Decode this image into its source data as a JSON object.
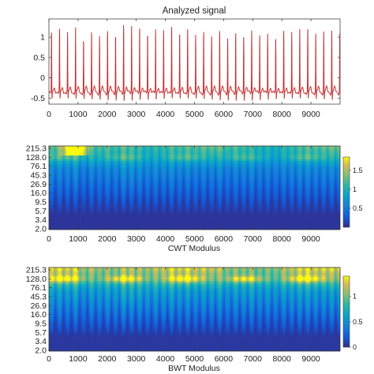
{
  "chart_data": [
    {
      "type": "line",
      "title": "Analyzed signal",
      "xlabel": "",
      "ylabel": "",
      "xlim": [
        0,
        10000
      ],
      "ylim": [
        -0.65,
        1.45
      ],
      "x_ticks": [
        "0",
        "1000",
        "2000",
        "3000",
        "4000",
        "5000",
        "6000",
        "7000",
        "8000",
        "9000"
      ],
      "y_ticks": [
        "-0.5",
        "0",
        "0.5",
        "1"
      ],
      "line_color": "#c83030",
      "grid": false,
      "beats": {
        "count": 36,
        "period": 275,
        "first_peak": 90,
        "peak_values": [
          1.15,
          1.2,
          1.1,
          1.25,
          0.95,
          1.15,
          1.05,
          1.2,
          1.1,
          1.35,
          1.3,
          1.25,
          1.1,
          1.2,
          1.15,
          1.25,
          1.1,
          1.2,
          1.05,
          1.15,
          1.1,
          1.2,
          1.0,
          1.15,
          1.1,
          1.2,
          1.05,
          1.1,
          1.0,
          1.15,
          1.1,
          1.2,
          1.25,
          1.1,
          1.15,
          1.2
        ],
        "baseline": -0.35,
        "trough": -0.55
      }
    },
    {
      "type": "heatmap",
      "title": "",
      "xlabel": "CWT Modulus",
      "ylabel": "",
      "xlim": [
        0,
        10000
      ],
      "x_ticks": [
        "0",
        "1000",
        "2000",
        "3000",
        "4000",
        "5000",
        "6000",
        "7000",
        "8000",
        "9000"
      ],
      "y_ticks": [
        "215.3",
        "128.0",
        "76.1",
        "45.3",
        "26.9",
        "16.0",
        "9.5",
        "5.7",
        "3.4",
        "2.0"
      ],
      "colorbar_ticks": [
        "0.5",
        "1",
        "1.5"
      ],
      "clim": [
        0,
        1.85
      ],
      "colormap": "parula"
    },
    {
      "type": "heatmap",
      "title": "",
      "xlabel": "BWT Modulus",
      "ylabel": "",
      "xlim": [
        0,
        10000
      ],
      "x_ticks": [
        "0",
        "1000",
        "2000",
        "3000",
        "4000",
        "5000",
        "6000",
        "7000",
        "8000",
        "9000"
      ],
      "y_ticks": [
        "215.3",
        "128.0",
        "76.1",
        "45.3",
        "26.9",
        "16.0",
        "9.5",
        "5.7",
        "3.4",
        "2.0"
      ],
      "colorbar_ticks": [
        "0",
        "0.5",
        "1"
      ],
      "clim": [
        0,
        1.4
      ],
      "colormap": "parula"
    }
  ]
}
